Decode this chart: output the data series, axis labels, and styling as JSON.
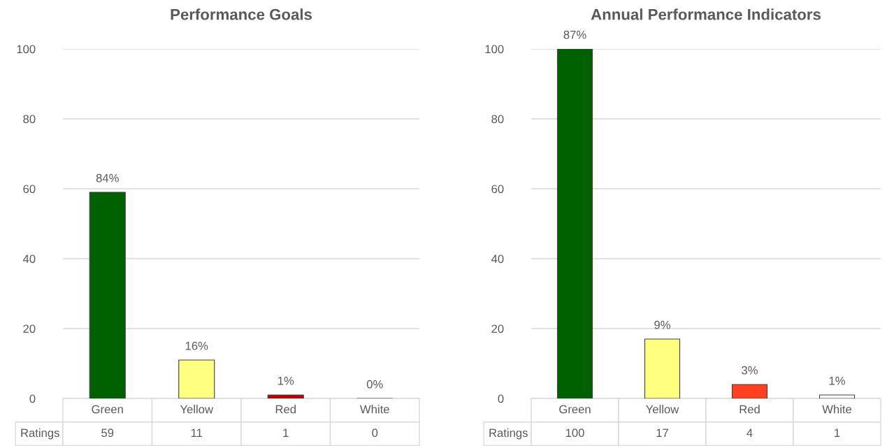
{
  "chart_data": [
    {
      "type": "bar",
      "title": "Performance Goals",
      "categories": [
        "Green",
        "Yellow",
        "Red",
        "White"
      ],
      "series": [
        {
          "name": "Ratings",
          "colors": [
            "#006100",
            "#ffff80",
            "#c00000",
            "#ffffff"
          ],
          "values": [
            59,
            11,
            1,
            0
          ],
          "value_labels": [
            "59",
            "11",
            "1",
            "0"
          ]
        }
      ],
      "annotations": [
        {
          "text": "84%",
          "x": "Green",
          "y": 59
        },
        {
          "text": "16%",
          "x": "Yellow",
          "y": 11
        },
        {
          "text": "1%",
          "x": "Red",
          "y": 1
        },
        {
          "text": "0%",
          "x": "White",
          "y": 0
        }
      ],
      "ylim": [
        0,
        100
      ],
      "yticks": [
        0,
        20,
        40,
        60,
        80,
        100
      ],
      "grid": "y"
    },
    {
      "type": "bar",
      "title": "Annual Performance Indicators",
      "categories": [
        "Green",
        "Yellow",
        "Red",
        "White"
      ],
      "series": [
        {
          "name": "Ratings",
          "colors": [
            "#006100",
            "#ffff80",
            "#ff4020",
            "#ffffff"
          ],
          "values": [
            100,
            17,
            4,
            1
          ],
          "value_labels": [
            "100",
            "17",
            "4",
            "1"
          ]
        }
      ],
      "annotations": [
        {
          "text": "87%",
          "x": "Green",
          "y": 100
        },
        {
          "text": "9%",
          "x": "Yellow",
          "y": 17
        },
        {
          "text": "3%",
          "x": "Red",
          "y": 4
        },
        {
          "text": "1%",
          "x": "White",
          "y": 1
        }
      ],
      "ylim": [
        0,
        100
      ],
      "yticks": [
        0,
        20,
        40,
        60,
        80,
        100
      ],
      "grid": "y"
    }
  ]
}
